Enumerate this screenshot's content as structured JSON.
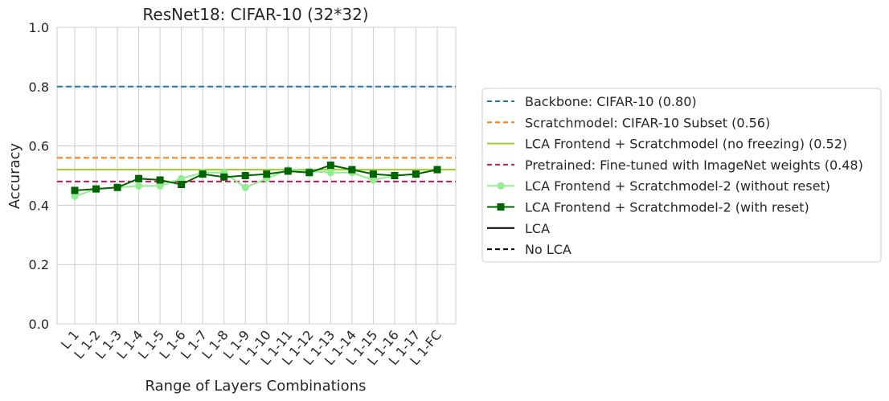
{
  "chart_data": {
    "type": "line",
    "title": "ResNet18: CIFAR-10 (32*32)",
    "xlabel": "Range of Layers Combinations",
    "ylabel": "Accuracy",
    "ylim": [
      0,
      1
    ],
    "yticks": [
      "0.0",
      "0.2",
      "0.4",
      "0.6",
      "0.8",
      "1.0"
    ],
    "grid": true,
    "legend_position": "right, outside plot",
    "categories": [
      "L 1",
      "L 1-2",
      "L 1-3",
      "L 1-4",
      "L 1-5",
      "L 1-6",
      "L 1-7",
      "L 1-8",
      "L 1-9",
      "L 1-10",
      "L 1-11",
      "L 1-12",
      "L 1-13",
      "L 1-14",
      "L 1-15",
      "L 1-16",
      "L 1-17",
      "L 1-FC"
    ],
    "reference_lines": [
      {
        "name": "Backbone: CIFAR-10 (0.80)",
        "value": 0.8,
        "color": "#1f77b4",
        "style": "dashed"
      },
      {
        "name": "Scratchmodel: CIFAR-10 Subset (0.56)",
        "value": 0.56,
        "color": "#ff7f0e",
        "style": "dashed"
      },
      {
        "name": "LCA Frontend + Scratchmodel (no freezing) (0.52)",
        "value": 0.52,
        "color": "#9acd32",
        "style": "solid"
      },
      {
        "name": "Pretrained: Fine-tuned with ImageNet weights (0.48)",
        "value": 0.48,
        "color": "#c2185b",
        "style": "dashed"
      }
    ],
    "series": [
      {
        "name": "LCA Frontend + Scratchmodel-2 (without reset)",
        "color": "#90ee90",
        "marker": "circle",
        "values": [
          0.43,
          0.455,
          0.46,
          0.465,
          0.465,
          0.49,
          0.51,
          0.51,
          0.46,
          0.49,
          0.52,
          0.515,
          0.51,
          0.51,
          0.485,
          0.5,
          0.505,
          0.52
        ]
      },
      {
        "name": "LCA Frontend + Scratchmodel-2 (with reset)",
        "color": "#006400",
        "marker": "square",
        "values": [
          0.45,
          0.455,
          0.46,
          0.49,
          0.485,
          0.47,
          0.505,
          0.495,
          0.5,
          0.505,
          0.515,
          0.51,
          0.535,
          0.52,
          0.505,
          0.5,
          0.505,
          0.52
        ]
      }
    ],
    "style_legend": [
      {
        "name": "LCA",
        "style": "solid"
      },
      {
        "name": "No LCA",
        "style": "dashed"
      }
    ]
  }
}
